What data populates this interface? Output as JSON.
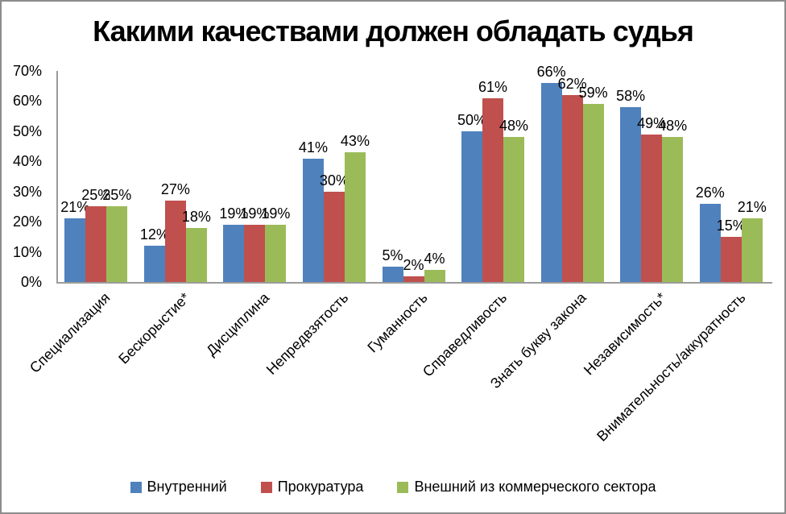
{
  "title": "Какими качествами должен обладать судья",
  "chart_data": {
    "type": "bar",
    "title": "Какими качествами должен обладать судья",
    "categories": [
      "Специализация",
      "Бескорыстие*",
      "Дисциплина",
      "Непредвзятость",
      "Гуманность",
      "Справедливость",
      "Знать букву закона",
      "Независимость*",
      "Внимательность/аккуратность"
    ],
    "series": [
      {
        "name": "Внутренний",
        "color": "#4F81BD",
        "values": [
          21,
          12,
          19,
          41,
          5,
          50,
          66,
          58,
          26
        ]
      },
      {
        "name": "Прокуратура",
        "color": "#C0504D",
        "values": [
          25,
          27,
          19,
          30,
          2,
          61,
          62,
          49,
          15
        ]
      },
      {
        "name": "Внешний из коммерческого сектора",
        "color": "#9BBB59",
        "values": [
          25,
          18,
          19,
          43,
          4,
          48,
          59,
          48,
          21
        ]
      }
    ],
    "value_suffix": "%",
    "ylim": [
      0,
      70
    ],
    "ytick_step": 10,
    "ytick_labels": [
      "0%",
      "10%",
      "20%",
      "30%",
      "40%",
      "50%",
      "60%",
      "70%"
    ],
    "grid": false,
    "data_labels": "outside-end",
    "legend_position": "bottom",
    "axis_color": "#9B9B9B",
    "frame_border_color": "#8C8C8C"
  }
}
